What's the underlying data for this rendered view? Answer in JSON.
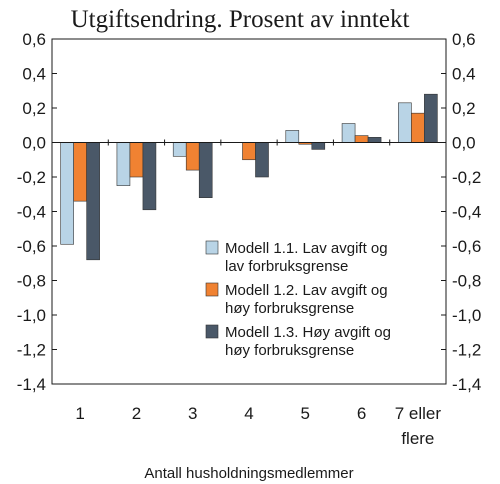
{
  "chart_data": {
    "type": "bar",
    "title": "Utgiftsendring. Prosent av inntekt",
    "xlabel": "Antall husholdningsmedlemmer",
    "ylabel": "",
    "ylim": [
      -1.4,
      0.6
    ],
    "yticks": [
      "0,6",
      "0,4",
      "0,2",
      "0,0",
      "-0,2",
      "-0,4",
      "-0,6",
      "-0,8",
      "-1,0",
      "-1,2",
      "-1,4"
    ],
    "ytick_values": [
      0.6,
      0.4,
      0.2,
      0.0,
      -0.2,
      -0.4,
      -0.6,
      -0.8,
      -1.0,
      -1.2,
      -1.4
    ],
    "categories": [
      [
        "1"
      ],
      [
        "2"
      ],
      [
        "3"
      ],
      [
        "4"
      ],
      [
        "5"
      ],
      [
        "6"
      ],
      [
        "7 eller",
        "flere"
      ]
    ],
    "grid": false,
    "legend_position": "center-right",
    "series": [
      {
        "name": [
          "Modell 1.1. Lav avgift og",
          "lav forbruksgrense"
        ],
        "color": "#b9d4e6",
        "values": [
          -0.59,
          -0.25,
          -0.08,
          0.0,
          0.07,
          0.11,
          0.23
        ]
      },
      {
        "name": [
          "Modell 1.2. Lav avgift og",
          "høy forbruksgrense"
        ],
        "color": "#f08232",
        "values": [
          -0.34,
          -0.2,
          -0.16,
          -0.1,
          -0.01,
          0.04,
          0.17
        ]
      },
      {
        "name": [
          "Modell 1.3. Høy avgift og",
          "høy forbruksgrense"
        ],
        "color": "#4a5868",
        "values": [
          -0.68,
          -0.39,
          -0.32,
          -0.2,
          -0.04,
          0.03,
          0.28
        ]
      }
    ]
  }
}
